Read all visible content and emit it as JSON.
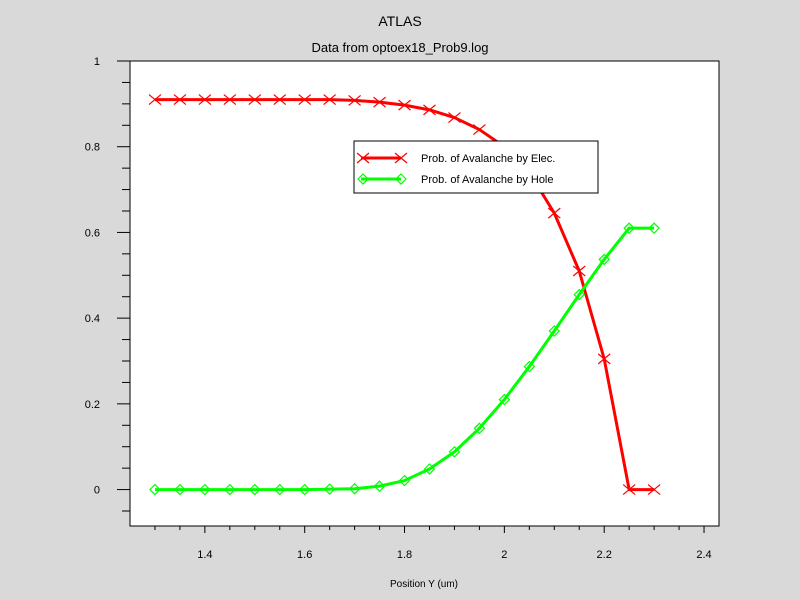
{
  "chart_data": {
    "type": "line",
    "title": "ATLAS",
    "subtitle": "Data from optoex18_Prob9.log",
    "xlabel": "Position Y (um)",
    "ylabel": "",
    "xlim": [
      1.25,
      2.43
    ],
    "ylim": [
      -0.085,
      1.0
    ],
    "grid": false,
    "legend_position": "upper-right",
    "x_ticks": [
      1.4,
      1.6,
      1.8,
      2.0,
      2.2,
      2.4
    ],
    "x_tick_labels": [
      "1.4",
      "1.6",
      "1.8",
      "2",
      "2.2",
      "2.4"
    ],
    "y_ticks": [
      0,
      0.2,
      0.4,
      0.6,
      0.8,
      1.0
    ],
    "y_tick_labels": [
      "0",
      "0.2",
      "0.4",
      "0.6",
      "0.8",
      "1"
    ],
    "x": [
      1.3,
      1.35,
      1.4,
      1.45,
      1.5,
      1.55,
      1.6,
      1.65,
      1.7,
      1.75,
      1.8,
      1.85,
      1.9,
      1.95,
      2.0,
      2.05,
      2.1,
      2.15,
      2.2,
      2.25,
      2.3
    ],
    "series": [
      {
        "name": "Prob. of Avalanche by Elec.",
        "color": "#ff0000",
        "marker": "x",
        "values": [
          0.91,
          0.91,
          0.91,
          0.91,
          0.91,
          0.91,
          0.91,
          0.91,
          0.908,
          0.904,
          0.897,
          0.886,
          0.868,
          0.84,
          0.8,
          0.74,
          0.645,
          0.51,
          0.305,
          0.0,
          0.0
        ]
      },
      {
        "name": "Prob. of Avalanche by Hole",
        "color": "#00ff00",
        "marker": "diamond",
        "values": [
          0.0,
          0.0,
          0.0,
          0.0,
          0.0,
          0.0,
          0.0,
          0.001,
          0.002,
          0.008,
          0.021,
          0.048,
          0.088,
          0.143,
          0.21,
          0.287,
          0.37,
          0.455,
          0.537,
          0.61,
          0.61
        ]
      }
    ]
  }
}
